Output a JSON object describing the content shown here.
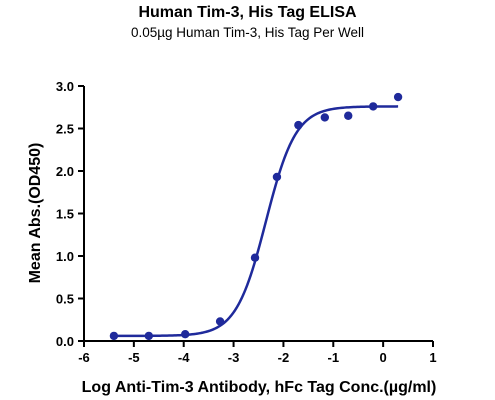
{
  "chart_data": {
    "type": "scatter",
    "title": "Human Tim-3, His Tag ELISA",
    "subtitle": "0.05µg Human Tim-3, His Tag Per Well",
    "xlabel": "Log Anti-Tim-3 Antibody, hFc Tag Conc.(µg/ml)",
    "ylabel": "Mean Abs.(OD450)",
    "xlim": [
      -6,
      1
    ],
    "ylim": [
      0,
      3.0
    ],
    "x_ticks": [
      "-6",
      "-5",
      "-4",
      "-3",
      "-2",
      "-1",
      "0",
      "1"
    ],
    "y_ticks": [
      "0.0",
      "0.5",
      "1.0",
      "1.5",
      "2.0",
      "2.5",
      "3.0"
    ],
    "grid": false,
    "series": [
      {
        "color": "#1f2a9b",
        "x": [
          -5.4,
          -4.7,
          -3.97,
          -3.27,
          -2.57,
          -2.13,
          -1.7,
          -1.17,
          -0.7,
          -0.2,
          0.3
        ],
        "y": [
          0.06,
          0.06,
          0.08,
          0.23,
          0.98,
          1.93,
          2.54,
          2.63,
          2.65,
          2.76,
          2.87
        ]
      }
    ],
    "fit_curve": {
      "model": "4PL",
      "bottom": 0.06,
      "top": 2.76,
      "logEC50": -2.35,
      "hill": 1.45,
      "x_range": [
        -5.4,
        0.3
      ]
    }
  }
}
